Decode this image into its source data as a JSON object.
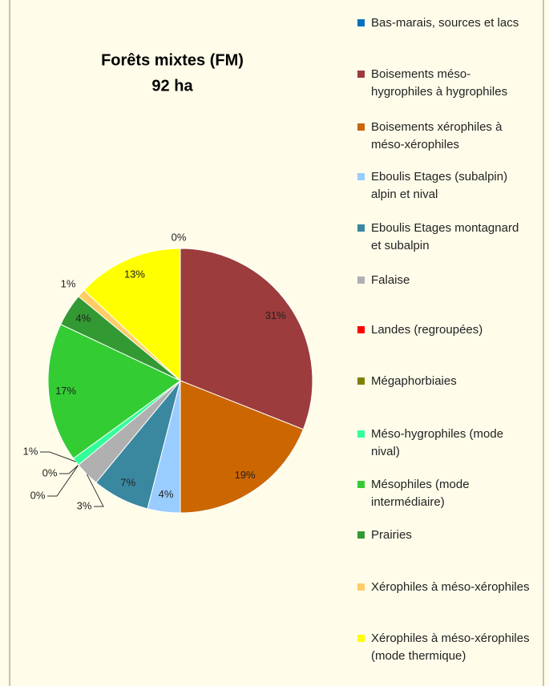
{
  "chart_data": {
    "type": "pie",
    "title": "Forêts mixtes (FM)",
    "subtitle": "92 ha",
    "categories": [
      "Bas-marais, sources et lacs",
      "Boisements méso-hygrophiles à hygrophiles",
      "Boisements xérophiles à méso-xérophiles",
      "Eboulis Etages (subalpin) alpin et nival",
      "Eboulis Etages montagnard et subalpin",
      "Falaise",
      "Landes (regroupées)",
      "Mégaphorbiaies",
      "Méso-hygrophiles (mode nival)",
      "Mésophiles (mode intermédiaire)",
      "Prairies",
      "Xérophiles à méso-xérophiles",
      "Xérophiles à méso-xérophiles (mode thermique)"
    ],
    "values": [
      0,
      31,
      19,
      4,
      7,
      3,
      0,
      0,
      1,
      17,
      4,
      1,
      13
    ],
    "value_labels": [
      "0%",
      "31%",
      "19%",
      "4%",
      "7%",
      "3%",
      "0%",
      "0%",
      "1%",
      "17%",
      "4%",
      "1%",
      "13%"
    ],
    "colors": [
      "#0070c0",
      "#9c3c3c",
      "#cc6600",
      "#99ccff",
      "#3a87a0",
      "#b0b0b0",
      "#ff0000",
      "#808000",
      "#33ff99",
      "#33cc33",
      "#339933",
      "#ffcc66",
      "#ffff00"
    ],
    "legend": "right"
  }
}
